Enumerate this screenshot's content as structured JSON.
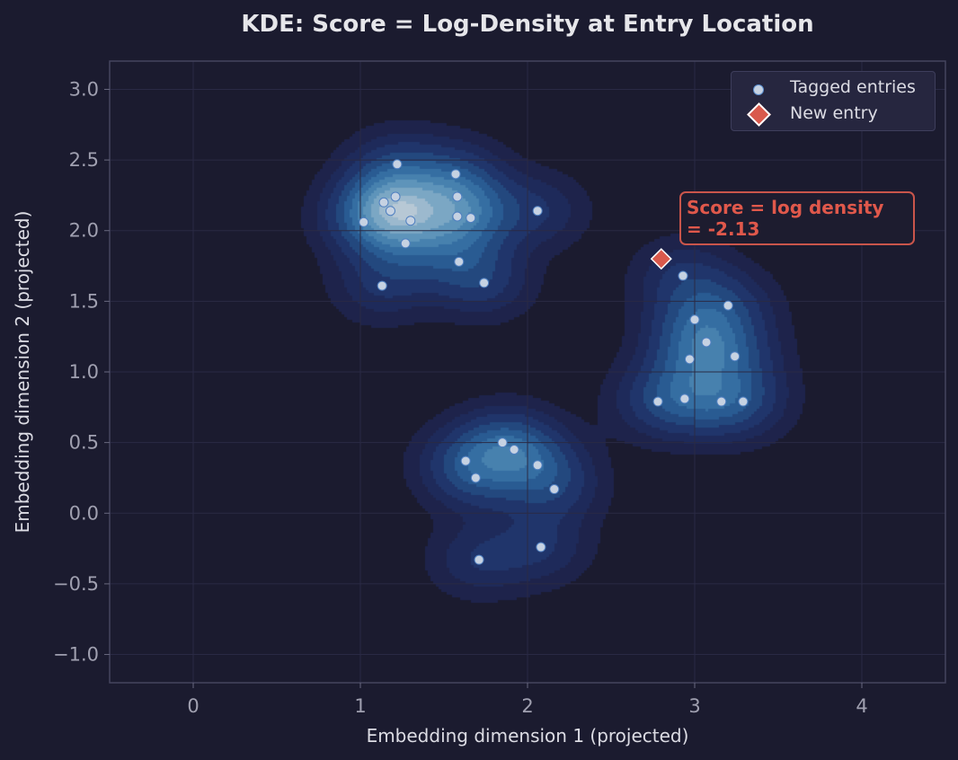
{
  "chart_data": {
    "type": "scatter",
    "title": "KDE: Score = Log-Density at Entry Location",
    "xlabel": "Embedding dimension 1 (projected)",
    "ylabel": "Embedding dimension 2 (projected)",
    "xlim": [
      -0.5,
      4.5
    ],
    "ylim": [
      -1.2,
      3.2
    ],
    "xticks": [
      "0",
      "1",
      "2",
      "3",
      "4"
    ],
    "xtick_values": [
      0,
      1,
      2,
      3,
      4
    ],
    "yticks": [
      "−1.0",
      "−0.5",
      "0.0",
      "0.5",
      "1.0",
      "1.5",
      "2.0",
      "2.5",
      "3.0"
    ],
    "ytick_values": [
      -1.0,
      -0.5,
      0.0,
      0.5,
      1.0,
      1.5,
      2.0,
      2.5,
      3.0
    ],
    "grid": true,
    "legend_position": "top-right",
    "background": "KDE density filled contours (Blues colormap)",
    "series": [
      {
        "name": "Tagged entries",
        "marker": "circle",
        "color": "#c6d2e2",
        "points": [
          [
            1.22,
            2.47
          ],
          [
            1.57,
            2.4
          ],
          [
            1.21,
            2.24
          ],
          [
            1.58,
            2.24
          ],
          [
            1.14,
            2.2
          ],
          [
            1.18,
            2.14
          ],
          [
            1.3,
            2.07
          ],
          [
            1.02,
            2.06
          ],
          [
            1.58,
            2.1
          ],
          [
            1.66,
            2.09
          ],
          [
            2.06,
            2.14
          ],
          [
            1.27,
            1.91
          ],
          [
            1.59,
            1.78
          ],
          [
            1.74,
            1.63
          ],
          [
            1.13,
            1.61
          ],
          [
            2.93,
            1.68
          ],
          [
            3.2,
            1.47
          ],
          [
            3.0,
            1.37
          ],
          [
            3.07,
            1.21
          ],
          [
            2.97,
            1.09
          ],
          [
            3.24,
            1.11
          ],
          [
            2.78,
            0.79
          ],
          [
            2.94,
            0.81
          ],
          [
            3.16,
            0.79
          ],
          [
            3.29,
            0.79
          ],
          [
            1.85,
            0.5
          ],
          [
            1.92,
            0.45
          ],
          [
            1.63,
            0.37
          ],
          [
            2.06,
            0.34
          ],
          [
            1.69,
            0.25
          ],
          [
            2.16,
            0.17
          ],
          [
            2.08,
            -0.24
          ],
          [
            1.71,
            -0.33
          ]
        ]
      },
      {
        "name": "New entry",
        "marker": "diamond",
        "color": "#d9594c",
        "points": [
          [
            2.8,
            1.8
          ]
        ]
      }
    ],
    "annotation": {
      "line1": "Score = log density",
      "line2": "= -2.13",
      "color": "#e0584b"
    }
  }
}
